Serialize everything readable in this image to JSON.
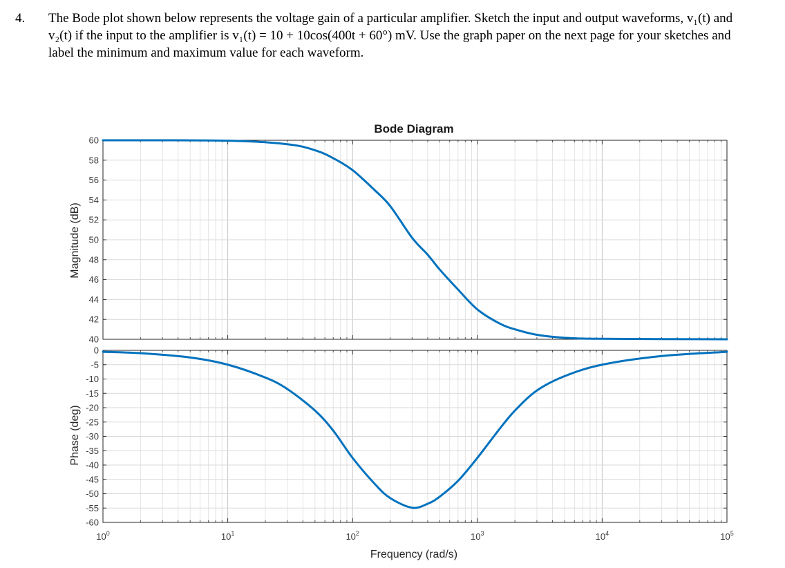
{
  "problem": {
    "number": "4.",
    "lines": [
      "The Bode plot shown below represents the voltage gain of a particular amplifier.  Sketch the input and output waveforms, v₁(t) and",
      "v₂(t) if the input to the amplifier is v₁(t) = 10 + 10cos(400t + 60°) mV.  Use the graph paper on the next page for your sketches and",
      "label the minimum and maximum value for each waveform."
    ]
  },
  "chart_data": {
    "type": "line",
    "title": "Bode Diagram",
    "xlabel": "Frequency  (rad/s)",
    "x_scale": "log",
    "xlim": [
      1,
      100000
    ],
    "x_ticks": [
      1,
      10,
      100,
      1000,
      10000,
      100000
    ],
    "x_tick_labels": [
      {
        "base": "10",
        "exp": "0"
      },
      {
        "base": "10",
        "exp": "1"
      },
      {
        "base": "10",
        "exp": "2"
      },
      {
        "base": "10",
        "exp": "3"
      },
      {
        "base": "10",
        "exp": "4"
      },
      {
        "base": "10",
        "exp": "5"
      }
    ],
    "grid": true,
    "line_color": "#0072BD",
    "panels": [
      {
        "name": "magnitude",
        "ylabel": "Magnitude (dB)",
        "ylim": [
          40,
          60
        ],
        "y_ticks": [
          60,
          58,
          56,
          54,
          52,
          50,
          48,
          46,
          44,
          42,
          40
        ],
        "y_tick_labels": [
          "60",
          "58",
          "56",
          "54",
          "52",
          "50",
          "48",
          "46",
          "44",
          "42",
          "40"
        ],
        "series": [
          {
            "x": [
              1,
              10,
              30,
              50,
              70,
              100,
              150,
              200,
              300,
              400,
              500,
              700,
              1000,
              1500,
              2000,
              3000,
              5000,
              10000,
              100000
            ],
            "values": [
              60,
              59.96,
              59.6,
              59.0,
              58.2,
              57.0,
              55.0,
              53.4,
              50.2,
              48.5,
              47.0,
              45.0,
              43.0,
              41.6,
              41.0,
              40.45,
              40.15,
              40.05,
              40.0
            ]
          }
        ]
      },
      {
        "name": "phase",
        "ylabel": "Phase (deg)",
        "ylim": [
          -60,
          0
        ],
        "y_ticks": [
          0,
          -5,
          -10,
          -15,
          -20,
          -25,
          -30,
          -35,
          -40,
          -45,
          -50,
          -55,
          -60
        ],
        "y_tick_labels": [
          "0",
          "-5",
          "-10",
          "-15",
          "-20",
          "-25",
          "-30",
          "-35",
          "-40",
          "-45",
          "-50",
          "-55",
          "-60"
        ],
        "series": [
          {
            "x": [
              1,
              2,
              5,
              10,
              20,
              30,
              50,
              70,
              100,
              150,
              200,
              300,
              400,
              500,
              700,
              1000,
              1500,
              2000,
              3000,
              5000,
              10000,
              30000,
              100000
            ],
            "values": [
              -0.5,
              -1.0,
              -2.5,
              -5.0,
              -9.5,
              -13.5,
              -21.0,
              -28.0,
              -37.5,
              -46.5,
              -51.5,
              -54.9,
              -53.5,
              -51.0,
              -45.5,
              -37.5,
              -27.5,
              -21.0,
              -14.0,
              -9.0,
              -5.0,
              -2.0,
              -0.5
            ]
          }
        ]
      }
    ]
  }
}
